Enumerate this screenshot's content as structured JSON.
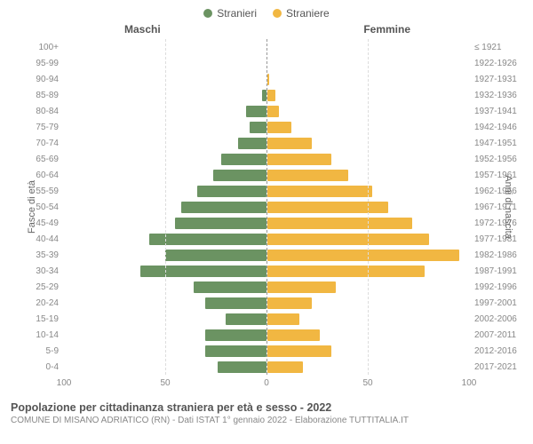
{
  "legend": {
    "male": {
      "label": "Stranieri",
      "color": "#6b9362"
    },
    "female": {
      "label": "Straniere",
      "color": "#f1b742"
    }
  },
  "headers": {
    "left": "Maschi",
    "right": "Femmine"
  },
  "axis_labels": {
    "left": "Fasce di età",
    "right": "Anni di nascita"
  },
  "chart": {
    "type": "population-pyramid",
    "xmax": 100,
    "x_ticks_left": [
      100,
      50,
      0
    ],
    "x_ticks_right": [
      50,
      100
    ],
    "bar_color_male": "#6b9362",
    "bar_color_female": "#f1b742",
    "grid_color": "#dddddd",
    "background": "#ffffff",
    "rows": [
      {
        "age": "100+",
        "birth": "≤ 1921",
        "m": 0,
        "f": 0
      },
      {
        "age": "95-99",
        "birth": "1922-1926",
        "m": 0,
        "f": 0
      },
      {
        "age": "90-94",
        "birth": "1927-1931",
        "m": 0,
        "f": 1
      },
      {
        "age": "85-89",
        "birth": "1932-1936",
        "m": 2,
        "f": 4
      },
      {
        "age": "80-84",
        "birth": "1937-1941",
        "m": 10,
        "f": 6
      },
      {
        "age": "75-79",
        "birth": "1942-1946",
        "m": 8,
        "f": 12
      },
      {
        "age": "70-74",
        "birth": "1947-1951",
        "m": 14,
        "f": 22
      },
      {
        "age": "65-69",
        "birth": "1952-1956",
        "m": 22,
        "f": 32
      },
      {
        "age": "60-64",
        "birth": "1957-1961",
        "m": 26,
        "f": 40
      },
      {
        "age": "55-59",
        "birth": "1962-1966",
        "m": 34,
        "f": 52
      },
      {
        "age": "50-54",
        "birth": "1967-1971",
        "m": 42,
        "f": 60
      },
      {
        "age": "45-49",
        "birth": "1972-1976",
        "m": 45,
        "f": 72
      },
      {
        "age": "40-44",
        "birth": "1977-1981",
        "m": 58,
        "f": 80
      },
      {
        "age": "35-39",
        "birth": "1982-1986",
        "m": 50,
        "f": 95
      },
      {
        "age": "30-34",
        "birth": "1987-1991",
        "m": 62,
        "f": 78
      },
      {
        "age": "25-29",
        "birth": "1992-1996",
        "m": 36,
        "f": 34
      },
      {
        "age": "20-24",
        "birth": "1997-2001",
        "m": 30,
        "f": 22
      },
      {
        "age": "15-19",
        "birth": "2002-2006",
        "m": 20,
        "f": 16
      },
      {
        "age": "10-14",
        "birth": "2007-2011",
        "m": 30,
        "f": 26
      },
      {
        "age": "5-9",
        "birth": "2012-2016",
        "m": 30,
        "f": 32
      },
      {
        "age": "0-4",
        "birth": "2017-2021",
        "m": 24,
        "f": 18
      }
    ]
  },
  "footer": {
    "title": "Popolazione per cittadinanza straniera per età e sesso - 2022",
    "subtitle": "COMUNE DI MISANO ADRIATICO (RN) - Dati ISTAT 1° gennaio 2022 - Elaborazione TUTTITALIA.IT"
  }
}
